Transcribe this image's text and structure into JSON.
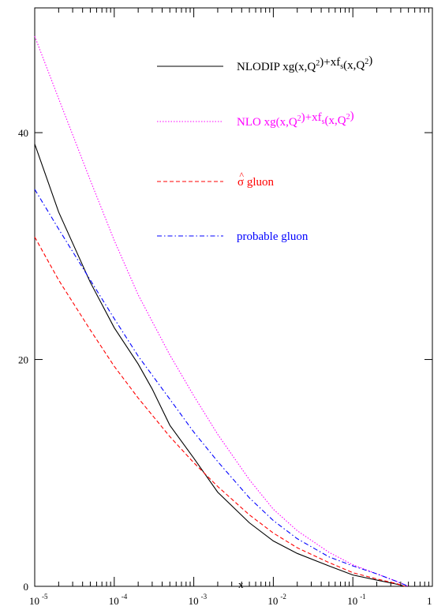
{
  "chart_data": {
    "type": "line",
    "title": "",
    "xlabel": "x",
    "ylabel": "",
    "x_scale": "log",
    "xlim": [
      1e-05,
      1
    ],
    "ylim": [
      0,
      51
    ],
    "x_ticks": [
      {
        "value": 1e-05,
        "base": "10",
        "exp": "-5"
      },
      {
        "value": 0.0001,
        "base": "10",
        "exp": "-4"
      },
      {
        "value": 0.001,
        "base": "10",
        "exp": "-3"
      },
      {
        "value": 0.01,
        "base": "10",
        "exp": "-2"
      },
      {
        "value": 0.1,
        "base": "10",
        "exp": "-1"
      },
      {
        "value": 1,
        "base": "1",
        "exp": ""
      }
    ],
    "y_ticks": [
      {
        "value": 0,
        "label": "0"
      },
      {
        "value": 20,
        "label": "20"
      },
      {
        "value": 40,
        "label": "40"
      }
    ],
    "grid": false,
    "legend_position": "top-right",
    "series": [
      {
        "legend_html": "NLODIP xg(x,Q<sup>2</sup>)+xf<sub>s</sub>(x,Q<sup>2</sup>)",
        "color": "#000000",
        "dash": "solid",
        "points": [
          [
            1e-05,
            39.0
          ],
          [
            2e-05,
            33.0
          ],
          [
            5e-05,
            26.8
          ],
          [
            0.0001,
            22.8
          ],
          [
            0.0002,
            19.6
          ],
          [
            0.0003,
            17.4
          ],
          [
            0.0005,
            14.2
          ],
          [
            0.001,
            11.3
          ],
          [
            0.002,
            8.3
          ],
          [
            0.005,
            5.6
          ],
          [
            0.01,
            4.0
          ],
          [
            0.02,
            2.9
          ],
          [
            0.05,
            1.8
          ],
          [
            0.1,
            1.0
          ],
          [
            0.2,
            0.55
          ],
          [
            0.35,
            0.2
          ],
          [
            0.45,
            0.0
          ]
        ]
      },
      {
        "legend_html": "NLO xg(x,Q<sup>2</sup>)+xf<sub>s</sub>(x,Q<sup>2</sup>)",
        "color": "#ff00ff",
        "dash": "dotted",
        "points": [
          [
            1e-05,
            48.5
          ],
          [
            2e-05,
            43.0
          ],
          [
            5e-05,
            35.8
          ],
          [
            0.0001,
            30.5
          ],
          [
            0.0002,
            25.7
          ],
          [
            0.0005,
            20.4
          ],
          [
            0.001,
            16.8
          ],
          [
            0.002,
            13.4
          ],
          [
            0.005,
            9.4
          ],
          [
            0.01,
            6.8
          ],
          [
            0.02,
            4.9
          ],
          [
            0.05,
            3.0
          ],
          [
            0.1,
            1.9
          ],
          [
            0.2,
            1.1
          ],
          [
            0.35,
            0.45
          ],
          [
            0.5,
            0.0
          ]
        ]
      },
      {
        "legend_html": "<tspan font-size='12' dy='-9' dx='1'>^</tspan><tspan dy='9' dx='-8'>σ</tspan> gluon",
        "color": "#ff0000",
        "dash": "dashed",
        "points": [
          [
            1e-05,
            30.8
          ],
          [
            2e-05,
            27.0
          ],
          [
            5e-05,
            22.6
          ],
          [
            0.0001,
            19.4
          ],
          [
            0.0002,
            16.6
          ],
          [
            0.0005,
            13.2
          ],
          [
            0.001,
            10.9
          ],
          [
            0.002,
            8.8
          ],
          [
            0.005,
            6.3
          ],
          [
            0.01,
            4.7
          ],
          [
            0.02,
            3.4
          ],
          [
            0.05,
            2.1
          ],
          [
            0.1,
            1.2
          ],
          [
            0.2,
            0.65
          ],
          [
            0.35,
            0.25
          ],
          [
            0.45,
            0.0
          ]
        ]
      },
      {
        "legend_html": "probable gluon",
        "color": "#0000ff",
        "dash": "dashdot",
        "points": [
          [
            1e-05,
            35.0
          ],
          [
            2e-05,
            31.5
          ],
          [
            5e-05,
            27.0
          ],
          [
            0.0001,
            23.6
          ],
          [
            0.0002,
            20.3
          ],
          [
            0.0005,
            16.5
          ],
          [
            0.001,
            13.6
          ],
          [
            0.002,
            11.0
          ],
          [
            0.005,
            7.8
          ],
          [
            0.01,
            5.8
          ],
          [
            0.02,
            4.2
          ],
          [
            0.05,
            2.6
          ],
          [
            0.1,
            1.8
          ],
          [
            0.2,
            1.1
          ],
          [
            0.35,
            0.45
          ],
          [
            0.5,
            0.0
          ]
        ]
      }
    ]
  }
}
